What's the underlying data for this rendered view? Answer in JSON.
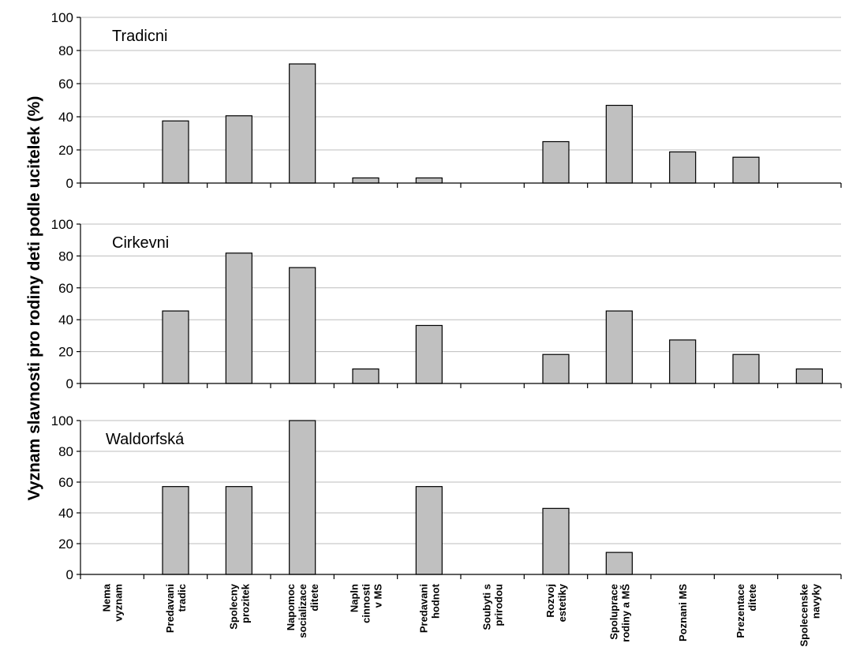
{
  "chart_data": {
    "type": "bar",
    "ylabel": "Vyznam slavnosti pro rodiny deti podle ucitelek (%)",
    "xlabel": "",
    "ylim": [
      0,
      100
    ],
    "yticks": [
      0,
      20,
      40,
      60,
      80,
      100
    ],
    "grid": true,
    "categories": [
      [
        "Nema",
        "vyznam"
      ],
      [
        "Predavani",
        "tradic"
      ],
      [
        "Spolecny",
        "prozitek"
      ],
      [
        "Napomoc",
        "socializace",
        "ditete"
      ],
      [
        "Napln",
        "cinnosti",
        "v MS"
      ],
      [
        "Predavani",
        "hodnot"
      ],
      [
        "Soubyti s",
        "prirodou"
      ],
      [
        "Rozvoj",
        "estetiky"
      ],
      [
        "Spoluprace",
        "rodiny a MŠ"
      ],
      [
        "Poznani MS"
      ],
      [
        "Prezentace",
        "ditete"
      ],
      [
        "Spolecenske",
        "navyky"
      ]
    ],
    "panels": [
      {
        "title": "Tradicni",
        "values": [
          0,
          37.5,
          40.6,
          71.9,
          3.1,
          3.1,
          0,
          25,
          46.9,
          18.8,
          15.6,
          0
        ]
      },
      {
        "title": "Cirkevni",
        "values": [
          0,
          45.5,
          81.8,
          72.7,
          9.1,
          36.4,
          0,
          18.2,
          45.5,
          27.3,
          18.2,
          9.1
        ]
      },
      {
        "title": "Waldorfská",
        "values": [
          0,
          57.1,
          57.1,
          100,
          0,
          57.1,
          0,
          42.9,
          14.3,
          0,
          0,
          0
        ]
      }
    ]
  }
}
